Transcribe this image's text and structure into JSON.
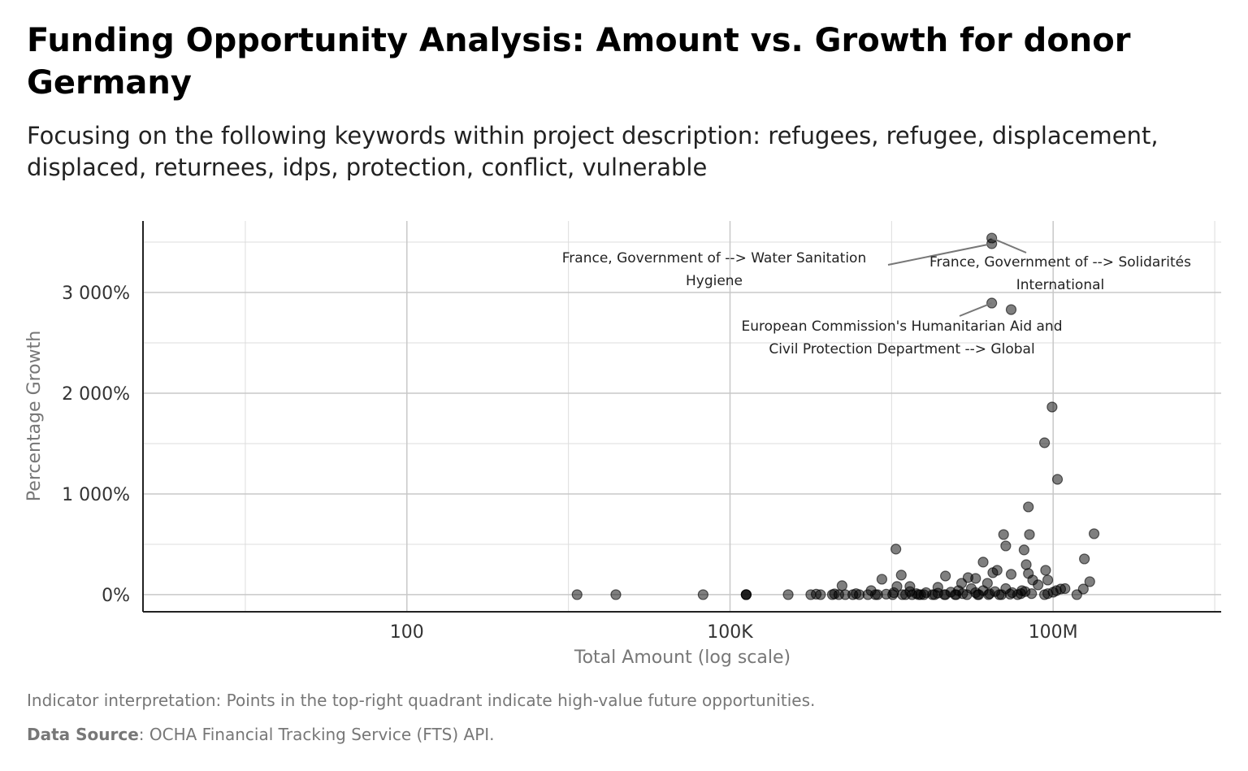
{
  "title": "Funding Opportunity Analysis: Amount vs. Growth for donor Germany",
  "subtitle": "Focusing on the following keywords within project description: refugees, refugee, displacement, displaced, returnees, idps, protection, conflict, vulnerable",
  "caption": {
    "interpretation": "Indicator interpretation: Points in the top-right quadrant indicate high-value future opportunities.",
    "source_label": "Data Source",
    "source_text": ": OCHA Financial Tracking Service (FTS) API."
  },
  "chart_data": {
    "type": "scatter",
    "xlabel": "Total Amount (log scale)",
    "ylabel": "Percentage Growth",
    "x_scale": "log10",
    "xlim_log10": [
      -0.45,
      9.56
    ],
    "ylim": [
      -170,
      3710
    ],
    "x_ticks": [
      {
        "log10": 2,
        "label": "100"
      },
      {
        "log10": 5,
        "label": "100K"
      },
      {
        "log10": 8,
        "label": "100M"
      }
    ],
    "y_ticks": [
      {
        "value": 0,
        "label": "0%"
      },
      {
        "value": 1000,
        "label": "1 000%"
      },
      {
        "value": 2000,
        "label": "2 000%"
      },
      {
        "value": 3000,
        "label": "3 000%"
      }
    ],
    "grid": true,
    "point_color": "#000000",
    "annotations": [
      {
        "point": [
          7.43,
          3484
        ],
        "lines": [
          "France, Government of --> Water Sanitation",
          "Hygiene"
        ]
      },
      {
        "point": [
          7.43,
          3540
        ],
        "lines": [
          "France, Government of --> Solidarités",
          "International"
        ]
      },
      {
        "point": [
          7.43,
          2895
        ],
        "lines": [
          "European Commission's Humanitarian Aid and",
          "Civil Protection Department --> Global"
        ]
      }
    ],
    "points_note": "each point: [log10(total amount), percentage growth]",
    "points": [
      [
        7.43,
        3540
      ],
      [
        7.43,
        3484
      ],
      [
        7.43,
        2895
      ],
      [
        7.61,
        2830
      ],
      [
        7.99,
        1863
      ],
      [
        7.92,
        1508
      ],
      [
        8.04,
        1145
      ],
      [
        7.77,
        871
      ],
      [
        7.54,
        597
      ],
      [
        7.78,
        597
      ],
      [
        8.38,
        605
      ],
      [
        7.56,
        484
      ],
      [
        6.54,
        452
      ],
      [
        8.29,
        355
      ],
      [
        7.35,
        323
      ],
      [
        7.73,
        444
      ],
      [
        7.75,
        298
      ],
      [
        7.93,
        242
      ],
      [
        8.34,
        129
      ],
      [
        6.41,
        153
      ],
      [
        6.59,
        194
      ],
      [
        7.0,
        185
      ],
      [
        7.21,
        169
      ],
      [
        7.28,
        161
      ],
      [
        7.61,
        202
      ],
      [
        7.39,
        113
      ],
      [
        7.48,
        242
      ],
      [
        7.44,
        218
      ],
      [
        7.77,
        210
      ],
      [
        7.81,
        145
      ],
      [
        7.86,
        97
      ],
      [
        7.95,
        145
      ],
      [
        6.04,
        89
      ],
      [
        6.55,
        81
      ],
      [
        6.67,
        81
      ],
      [
        6.93,
        73
      ],
      [
        7.15,
        113
      ],
      [
        8.07,
        56
      ],
      [
        8.28,
        56
      ],
      [
        8.0,
        24
      ],
      [
        8.22,
        0
      ],
      [
        3.58,
        0
      ],
      [
        3.94,
        0
      ],
      [
        4.75,
        0
      ],
      [
        5.15,
        0
      ],
      [
        5.15,
        0
      ],
      [
        5.15,
        0
      ],
      [
        5.54,
        0
      ],
      [
        5.75,
        0
      ],
      [
        5.8,
        5
      ],
      [
        5.84,
        0
      ],
      [
        5.95,
        0
      ],
      [
        5.97,
        8
      ],
      [
        6.01,
        0
      ],
      [
        6.07,
        0
      ],
      [
        6.14,
        0
      ],
      [
        6.17,
        10
      ],
      [
        6.28,
        0
      ],
      [
        6.31,
        40
      ],
      [
        6.37,
        0
      ],
      [
        6.45,
        5
      ],
      [
        6.51,
        0
      ],
      [
        6.52,
        20
      ],
      [
        6.63,
        0
      ],
      [
        6.67,
        30
      ],
      [
        6.69,
        0
      ],
      [
        6.73,
        10
      ],
      [
        6.77,
        0
      ],
      [
        6.82,
        20
      ],
      [
        6.88,
        0
      ],
      [
        6.93,
        15
      ],
      [
        6.99,
        0
      ],
      [
        7.05,
        25
      ],
      [
        7.09,
        0
      ],
      [
        7.12,
        40
      ],
      [
        7.16,
        10
      ],
      [
        7.2,
        0
      ],
      [
        7.24,
        60
      ],
      [
        7.28,
        20
      ],
      [
        7.31,
        0
      ],
      [
        7.35,
        40
      ],
      [
        7.41,
        10
      ],
      [
        7.46,
        30
      ],
      [
        7.52,
        0
      ],
      [
        7.56,
        60
      ],
      [
        7.62,
        20
      ],
      [
        7.67,
        0
      ],
      [
        7.71,
        40
      ],
      [
        7.74,
        30
      ],
      [
        7.8,
        10
      ],
      [
        7.92,
        0
      ],
      [
        7.95,
        10
      ],
      [
        8.03,
        40
      ],
      [
        8.11,
        60
      ],
      [
        6.2,
        0
      ],
      [
        6.6,
        0
      ],
      [
        6.9,
        0
      ],
      [
        7.0,
        0
      ],
      [
        7.1,
        0
      ],
      [
        6.8,
        0
      ],
      [
        7.3,
        0
      ],
      [
        7.4,
        0
      ],
      [
        7.5,
        0
      ],
      [
        7.6,
        5
      ],
      [
        7.7,
        10
      ],
      [
        6.35,
        0
      ],
      [
        6.75,
        0
      ]
    ]
  }
}
